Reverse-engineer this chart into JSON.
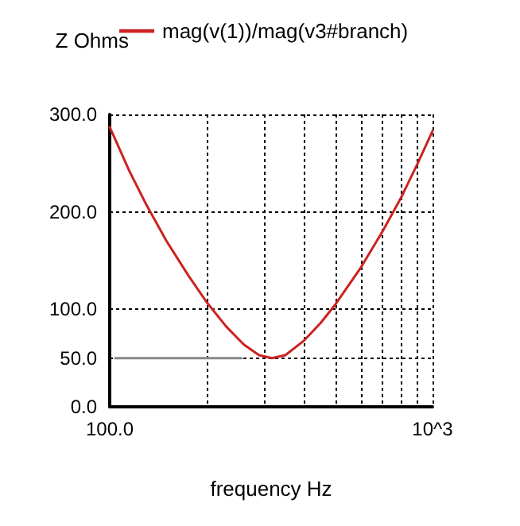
{
  "chart_data": {
    "type": "line",
    "xlabel": "frequency Hz",
    "ylabel": "Z Ohms",
    "log": "x",
    "grid": true,
    "legend": "top",
    "marker": "none",
    "line_style": "solid",
    "xlim": [
      100,
      1000
    ],
    "ylim": [
      0,
      300
    ],
    "xticks": [
      {
        "value": 100,
        "label": "100.0"
      },
      {
        "value": 200,
        "label": null
      },
      {
        "value": 300,
        "label": null
      },
      {
        "value": 400,
        "label": null
      },
      {
        "value": 500,
        "label": null
      },
      {
        "value": 600,
        "label": null
      },
      {
        "value": 700,
        "label": null
      },
      {
        "value": 800,
        "label": null
      },
      {
        "value": 900,
        "label": null
      },
      {
        "value": 1000,
        "label": "10^3"
      }
    ],
    "yticks": [
      {
        "value": 0,
        "label": "0.0"
      },
      {
        "value": 50,
        "label": "50.0"
      },
      {
        "value": 100,
        "label": "100.0"
      },
      {
        "value": 200,
        "label": "200.0"
      },
      {
        "value": 300,
        "label": "300.0"
      }
    ],
    "series": [
      {
        "name": "mag(v(1))/mag(v3#branch)",
        "color": "#cc2222",
        "x": [
          100,
          115,
          130,
          150,
          175,
          200,
          230,
          260,
          290,
          318,
          350,
          400,
          450,
          500,
          600,
          700,
          800,
          900,
          1000
        ],
        "values": [
          287,
          242,
          207,
          170,
          135,
          107,
          82,
          64,
          53,
          50,
          53,
          68,
          86,
          105,
          143,
          180,
          215,
          250,
          283
        ]
      },
      {
        "color": "#888888",
        "x": [
          104,
          256
        ],
        "values": [
          50,
          50
        ]
      }
    ]
  }
}
